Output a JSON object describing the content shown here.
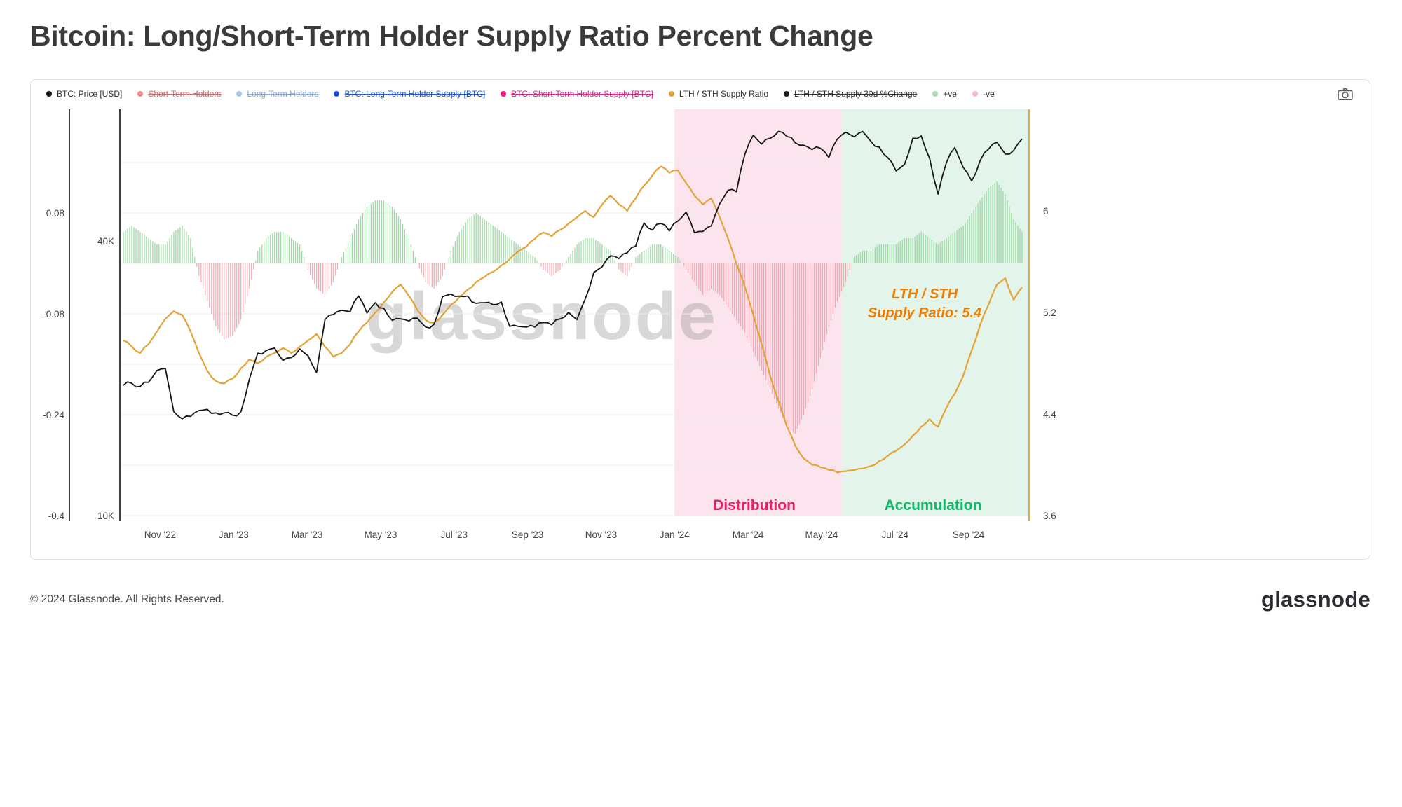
{
  "page": {
    "title": "Bitcoin: Long/Short-Term Holder Supply Ratio Percent Change",
    "footer_copyright": "© 2024 Glassnode. All Rights Reserved.",
    "footer_logo": "glassnode",
    "watermark": "glassnode"
  },
  "legend": {
    "items": [
      {
        "label": "BTC: Price [USD]",
        "dot_color": "#141414",
        "text_color": "#333333",
        "struck": false
      },
      {
        "label": "Short-Term Holders",
        "dot_color": "#f08a8a",
        "text_color": "#c96a6a",
        "struck": true
      },
      {
        "label": "Long-Term Holders",
        "dot_color": "#a9c6e8",
        "text_color": "#8aa9c9",
        "struck": true
      },
      {
        "label": "BTC: Long-Term Holder Supply [BTC]",
        "dot_color": "#1d4ed8",
        "text_color": "#2457d6",
        "struck": true
      },
      {
        "label": "BTC: Short-Term Holder Supply [BTC]",
        "dot_color": "#e6187d",
        "text_color": "#d62a86",
        "struck": true
      },
      {
        "label": "LTH / STH Supply Ratio",
        "dot_color": "#e6a23c",
        "text_color": "#333333",
        "struck": false
      },
      {
        "label": "LTH / STH Supply 30d %Change",
        "dot_color": "#141414",
        "text_color": "#333333",
        "struck": true
      },
      {
        "label": "+ve",
        "dot_color": "#a6dcab",
        "text_color": "#333333",
        "struck": false
      },
      {
        "label": "-ve",
        "dot_color": "#f6bcc4",
        "text_color": "#333333",
        "struck": false
      }
    ]
  },
  "annotations": {
    "ratio_note_line1": "LTH / STH",
    "ratio_note_line2": "Supply Ratio: 5.4",
    "distribution_label": "Distribution",
    "accumulation_label": "Accumulation"
  },
  "colors": {
    "price_line": "#161616",
    "ratio_line": "#e3a337",
    "positive_bar": "#8fd598",
    "negative_bar": "#f2a0aa",
    "zone_distribution": "#fbe4ee",
    "zone_accumulation": "#e3f5ea",
    "distribution_text": "#ea1f63",
    "accumulation_text": "#12b76a",
    "annotation_text": "#f07d00",
    "grid": "#ededed",
    "axis_dark": "#111111",
    "tick_text": "#444444",
    "watermark": "#8a8a8a"
  },
  "chart_data": {
    "type": "line",
    "title": "Bitcoin: Long/Short-Term Holder Supply Ratio Percent Change",
    "legend_position": "top",
    "grid": true,
    "axes": {
      "pct_change_left": {
        "label": "LTH / STH Supply 30d %Change",
        "ticks": [
          {
            "label": "0.08",
            "v": 0.08
          },
          {
            "label": "-0.08",
            "v": -0.08
          },
          {
            "label": "-0.24",
            "v": -0.24
          },
          {
            "label": "-0.4",
            "v": -0.4
          }
        ],
        "range": [
          -0.45,
          0.17
        ]
      },
      "price_left_log": {
        "label": "BTC: Price [USD]",
        "scale": "log",
        "ticks": [
          {
            "label": "40K",
            "v": 40
          },
          {
            "label": "10K",
            "v": 10
          }
        ]
      },
      "ratio_right": {
        "label": "LTH / STH Supply Ratio",
        "ticks": [
          {
            "label": "6",
            "v": 6
          },
          {
            "label": "5.2",
            "v": 5.2
          },
          {
            "label": "4.4",
            "v": 4.4
          },
          {
            "label": "3.6",
            "v": 3.6
          }
        ],
        "range": [
          3.6,
          6.4
        ]
      },
      "x": {
        "start": "Oct 2022",
        "total_months": 24.61,
        "ticks": [
          {
            "label": "Nov '22",
            "m": 1
          },
          {
            "label": "Jan '23",
            "m": 3
          },
          {
            "label": "Mar '23",
            "m": 5
          },
          {
            "label": "May '23",
            "m": 7
          },
          {
            "label": "Jul '23",
            "m": 9
          },
          {
            "label": "Sep '23",
            "m": 11
          },
          {
            "label": "Nov '23",
            "m": 13
          },
          {
            "label": "Jan '24",
            "m": 15
          },
          {
            "label": "Mar '24",
            "m": 17
          },
          {
            "label": "May '24",
            "m": 19
          },
          {
            "label": "Jul '24",
            "m": 21
          },
          {
            "label": "Sep '24",
            "m": 23
          }
        ]
      }
    },
    "zones": [
      {
        "label": "Distribution",
        "from_month": 15.0,
        "to_month": 19.55
      },
      {
        "label": "Accumulation",
        "from_month": 19.55,
        "to_month": 24.66
      }
    ],
    "series_info": [
      {
        "name": "BTC: Price [USD]",
        "type": "line",
        "axis": "price_left_log",
        "units": "thousand USD"
      },
      {
        "name": "LTH / STH Supply Ratio",
        "type": "line",
        "axis": "ratio_right",
        "current_value": 5.4
      },
      {
        "name": "LTH / STH Supply 30d %Change",
        "type": "bar",
        "axis": "pct_change_left",
        "positive": "+ve",
        "negative": "-ve"
      }
    ],
    "series": {
      "btc_price_usd_k": [
        19.3,
        19.5,
        19.2,
        19.6,
        20.8,
        21.0,
        16.9,
        16.3,
        16.5,
        17.0,
        17.1,
        16.8,
        16.8,
        16.6,
        16.9,
        19.9,
        22.7,
        23.0,
        23.3,
        21.9,
        22.2,
        23.2,
        22.4,
        20.6,
        26.9,
        27.6,
        28.2,
        28.0,
        30.3,
        27.8,
        29.3,
        28.5,
        26.8,
        27.0,
        26.7,
        27.1,
        25.9,
        26.3,
        30.2,
        30.6,
        30.3,
        30.3,
        29.2,
        29.3,
        29.0,
        29.4,
        26.0,
        26.0,
        25.9,
        25.9,
        26.5,
        26.2,
        27.0,
        27.9,
        26.9,
        29.9,
        34.1,
        35.1,
        37.1,
        36.6,
        37.7,
        39.0,
        43.8,
        42.3,
        43.7,
        42.1,
        44.2,
        46.3,
        41.7,
        42.0,
        43.2,
        48.3,
        51.7,
        51.3,
        62.0,
        68.3,
        65.3,
        67.2,
        69.6,
        67.8,
        65.7,
        64.9,
        63.5,
        63.9,
        61.0,
        66.9,
        69.3,
        67.7,
        69.6,
        66.2,
        64.3,
        61.0,
        57.0,
        58.9,
        67.2,
        68.0,
        60.7,
        50.7,
        59.5,
        64.1,
        58.0,
        54.2,
        60.0,
        63.6,
        65.9,
        62.1,
        63.2,
        67.0
      ],
      "lth_sth_supply_ratio": [
        4.98,
        4.93,
        4.88,
        4.95,
        5.05,
        5.15,
        5.21,
        5.18,
        5.05,
        4.88,
        4.74,
        4.66,
        4.64,
        4.68,
        4.76,
        4.83,
        4.8,
        4.85,
        4.88,
        4.92,
        4.88,
        4.93,
        4.98,
        5.03,
        4.93,
        4.85,
        4.88,
        4.95,
        5.05,
        5.12,
        5.2,
        5.28,
        5.36,
        5.42,
        5.33,
        5.22,
        5.14,
        5.12,
        5.18,
        5.26,
        5.32,
        5.38,
        5.44,
        5.48,
        5.52,
        5.57,
        5.62,
        5.68,
        5.72,
        5.78,
        5.83,
        5.8,
        5.85,
        5.9,
        5.95,
        6.0,
        5.95,
        6.05,
        6.12,
        6.05,
        6.0,
        6.1,
        6.2,
        6.28,
        6.35,
        6.3,
        6.32,
        6.22,
        6.12,
        6.05,
        6.1,
        5.95,
        5.78,
        5.58,
        5.4,
        5.18,
        4.95,
        4.7,
        4.5,
        4.3,
        4.15,
        4.05,
        4.0,
        3.98,
        3.96,
        3.94,
        3.95,
        3.96,
        3.97,
        3.99,
        4.03,
        4.07,
        4.11,
        4.16,
        4.23,
        4.3,
        4.36,
        4.3,
        4.45,
        4.56,
        4.7,
        4.9,
        5.1,
        5.26,
        5.42,
        5.47,
        5.3,
        5.4
      ],
      "lth_sth_supply_30d_pct_change": [
        0.05,
        0.06,
        0.05,
        0.04,
        0.03,
        0.03,
        0.05,
        0.06,
        0.04,
        -0.02,
        -0.06,
        -0.1,
        -0.12,
        -0.115,
        -0.09,
        -0.04,
        0.02,
        0.04,
        0.05,
        0.05,
        0.04,
        0.03,
        -0.01,
        -0.04,
        -0.05,
        -0.03,
        0.01,
        0.04,
        0.07,
        0.09,
        0.1,
        0.1,
        0.09,
        0.07,
        0.04,
        0.0,
        -0.03,
        -0.04,
        -0.02,
        0.02,
        0.05,
        0.07,
        0.08,
        0.07,
        0.06,
        0.05,
        0.04,
        0.03,
        0.02,
        0.01,
        -0.01,
        -0.02,
        -0.01,
        0.01,
        0.03,
        0.04,
        0.04,
        0.03,
        0.02,
        -0.01,
        -0.02,
        0.01,
        0.02,
        0.03,
        0.03,
        0.02,
        0.01,
        -0.01,
        -0.03,
        -0.05,
        -0.04,
        -0.05,
        -0.07,
        -0.09,
        -0.11,
        -0.14,
        -0.17,
        -0.2,
        -0.23,
        -0.26,
        -0.27,
        -0.24,
        -0.2,
        -0.15,
        -0.1,
        -0.06,
        -0.03,
        0.01,
        0.02,
        0.02,
        0.03,
        0.03,
        0.03,
        0.04,
        0.04,
        0.05,
        0.04,
        0.03,
        0.04,
        0.05,
        0.06,
        0.08,
        0.1,
        0.12,
        0.13,
        0.11,
        0.07,
        0.05
      ]
    }
  }
}
